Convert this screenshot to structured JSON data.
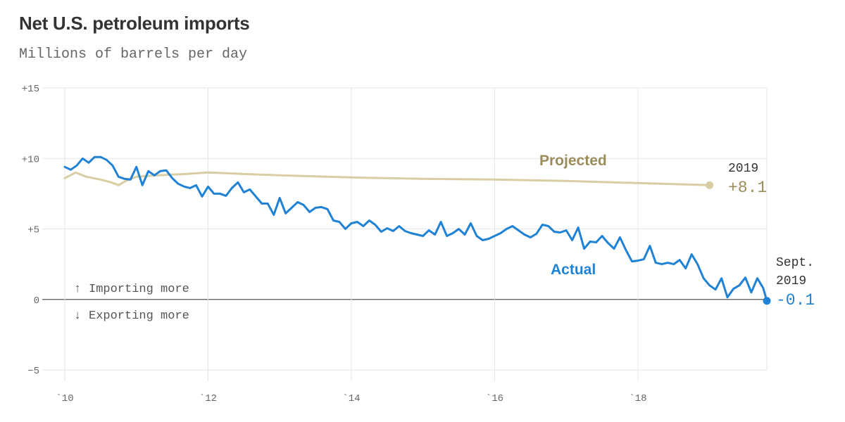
{
  "header": {
    "title": "Net U.S. petroleum imports",
    "subtitle": "Millions of barrels per day"
  },
  "colors": {
    "actual": "#1f82d4",
    "projected": "#d9cda3",
    "projected_text": "#9a8c5b",
    "grid": "#e6e6e6",
    "zero": "#555555"
  },
  "notes": {
    "up_arrow": "↑",
    "importing": "Importing more",
    "down_arrow": "↓",
    "exporting": "Exporting more"
  },
  "end_labels": {
    "projected_year": "2019",
    "projected_value": "+8.1",
    "actual_month": "Sept.",
    "actual_year": "2019",
    "actual_value": "-0.1"
  },
  "chart_data": {
    "type": "line",
    "title": "Net U.S. petroleum imports",
    "subtitle": "Millions of barrels per day",
    "xlim": [
      2010,
      2019.8
    ],
    "ylim": [
      -5,
      15
    ],
    "y_ticks": [
      15,
      10,
      5,
      0,
      -5
    ],
    "y_tick_labels": [
      "+15",
      "+10",
      "+5",
      "0",
      "−5"
    ],
    "x_ticks": [
      2010,
      2012,
      2014,
      2016,
      2018
    ],
    "x_tick_labels": [
      "`10",
      "`12",
      "`14",
      "`16",
      "`18"
    ],
    "grid": true,
    "series": [
      {
        "name": "Projected",
        "color": "#d9cda3",
        "points": [
          [
            2010.0,
            8.6
          ],
          [
            2010.15,
            9.0
          ],
          [
            2010.3,
            8.7
          ],
          [
            2010.5,
            8.5
          ],
          [
            2010.65,
            8.3
          ],
          [
            2010.75,
            8.1
          ],
          [
            2010.85,
            8.4
          ],
          [
            2011.0,
            8.7
          ],
          [
            2011.3,
            8.8
          ],
          [
            2011.7,
            8.9
          ],
          [
            2012.0,
            9.0
          ],
          [
            2013.0,
            8.8
          ],
          [
            2014.0,
            8.65
          ],
          [
            2015.0,
            8.55
          ],
          [
            2016.0,
            8.5
          ],
          [
            2017.0,
            8.4
          ],
          [
            2018.0,
            8.25
          ],
          [
            2019.0,
            8.1
          ]
        ]
      },
      {
        "name": "Actual",
        "color": "#1f82d4",
        "points": [
          [
            2010.0,
            9.4
          ],
          [
            2010.083,
            9.2
          ],
          [
            2010.167,
            9.5
          ],
          [
            2010.25,
            10.0
          ],
          [
            2010.333,
            9.7
          ],
          [
            2010.417,
            10.1
          ],
          [
            2010.5,
            10.1
          ],
          [
            2010.583,
            9.9
          ],
          [
            2010.667,
            9.5
          ],
          [
            2010.75,
            8.7
          ],
          [
            2010.833,
            8.55
          ],
          [
            2010.917,
            8.5
          ],
          [
            2011.0,
            9.4
          ],
          [
            2011.083,
            8.1
          ],
          [
            2011.167,
            9.1
          ],
          [
            2011.25,
            8.8
          ],
          [
            2011.333,
            9.1
          ],
          [
            2011.417,
            9.15
          ],
          [
            2011.5,
            8.6
          ],
          [
            2011.583,
            8.2
          ],
          [
            2011.667,
            8.0
          ],
          [
            2011.75,
            7.9
          ],
          [
            2011.833,
            8.1
          ],
          [
            2011.917,
            7.3
          ],
          [
            2012.0,
            8.0
          ],
          [
            2012.083,
            7.5
          ],
          [
            2012.167,
            7.5
          ],
          [
            2012.25,
            7.35
          ],
          [
            2012.333,
            7.9
          ],
          [
            2012.417,
            8.3
          ],
          [
            2012.5,
            7.6
          ],
          [
            2012.583,
            7.8
          ],
          [
            2012.667,
            7.3
          ],
          [
            2012.75,
            6.8
          ],
          [
            2012.833,
            6.8
          ],
          [
            2012.917,
            6.0
          ],
          [
            2013.0,
            7.2
          ],
          [
            2013.083,
            6.1
          ],
          [
            2013.167,
            6.5
          ],
          [
            2013.25,
            6.9
          ],
          [
            2013.333,
            6.7
          ],
          [
            2013.417,
            6.2
          ],
          [
            2013.5,
            6.5
          ],
          [
            2013.583,
            6.55
          ],
          [
            2013.667,
            6.4
          ],
          [
            2013.75,
            5.6
          ],
          [
            2013.833,
            5.5
          ],
          [
            2013.917,
            5.0
          ],
          [
            2014.0,
            5.4
          ],
          [
            2014.083,
            5.5
          ],
          [
            2014.167,
            5.2
          ],
          [
            2014.25,
            5.6
          ],
          [
            2014.333,
            5.3
          ],
          [
            2014.417,
            4.8
          ],
          [
            2014.5,
            5.05
          ],
          [
            2014.583,
            4.85
          ],
          [
            2014.667,
            5.2
          ],
          [
            2014.75,
            4.85
          ],
          [
            2014.833,
            4.7
          ],
          [
            2014.917,
            4.6
          ],
          [
            2015.0,
            4.5
          ],
          [
            2015.083,
            4.9
          ],
          [
            2015.167,
            4.6
          ],
          [
            2015.25,
            5.5
          ],
          [
            2015.333,
            4.5
          ],
          [
            2015.417,
            4.7
          ],
          [
            2015.5,
            5.0
          ],
          [
            2015.583,
            4.6
          ],
          [
            2015.667,
            5.4
          ],
          [
            2015.75,
            4.5
          ],
          [
            2015.833,
            4.2
          ],
          [
            2015.917,
            4.3
          ],
          [
            2016.0,
            4.5
          ],
          [
            2016.083,
            4.7
          ],
          [
            2016.167,
            5.0
          ],
          [
            2016.25,
            5.2
          ],
          [
            2016.333,
            4.9
          ],
          [
            2016.417,
            4.6
          ],
          [
            2016.5,
            4.4
          ],
          [
            2016.583,
            4.65
          ],
          [
            2016.667,
            5.3
          ],
          [
            2016.75,
            5.2
          ],
          [
            2016.833,
            4.8
          ],
          [
            2016.917,
            4.75
          ],
          [
            2017.0,
            4.9
          ],
          [
            2017.083,
            4.2
          ],
          [
            2017.167,
            5.1
          ],
          [
            2017.25,
            3.6
          ],
          [
            2017.333,
            4.1
          ],
          [
            2017.417,
            4.05
          ],
          [
            2017.5,
            4.5
          ],
          [
            2017.583,
            4.0
          ],
          [
            2017.667,
            3.6
          ],
          [
            2017.75,
            4.4
          ],
          [
            2017.833,
            3.5
          ],
          [
            2017.917,
            2.7
          ],
          [
            2018.0,
            2.75
          ],
          [
            2018.083,
            2.85
          ],
          [
            2018.167,
            3.8
          ],
          [
            2018.25,
            2.6
          ],
          [
            2018.333,
            2.5
          ],
          [
            2018.417,
            2.6
          ],
          [
            2018.5,
            2.5
          ],
          [
            2018.583,
            2.8
          ],
          [
            2018.667,
            2.2
          ],
          [
            2018.75,
            3.2
          ],
          [
            2018.833,
            2.5
          ],
          [
            2018.917,
            1.5
          ],
          [
            2019.0,
            1.0
          ],
          [
            2019.083,
            0.7
          ],
          [
            2019.167,
            1.5
          ],
          [
            2019.25,
            0.15
          ],
          [
            2019.333,
            0.75
          ],
          [
            2019.417,
            1.0
          ],
          [
            2019.5,
            1.55
          ],
          [
            2019.583,
            0.5
          ],
          [
            2019.667,
            1.5
          ],
          [
            2019.75,
            0.8
          ],
          [
            2019.8,
            -0.1
          ]
        ]
      }
    ]
  }
}
